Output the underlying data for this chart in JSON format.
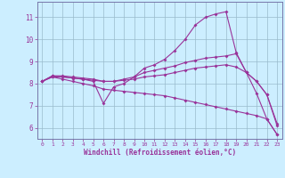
{
  "background_color": "#cceeff",
  "line_color": "#993399",
  "grid_color": "#99bbcc",
  "xlabel": "Windchill (Refroidissement éolien,°C)",
  "xlabel_color": "#993399",
  "tick_color": "#993399",
  "spine_color": "#7777aa",
  "xlim": [
    -0.5,
    23.5
  ],
  "ylim": [
    5.5,
    11.7
  ],
  "yticks": [
    6,
    7,
    8,
    9,
    10,
    11
  ],
  "xticks": [
    0,
    1,
    2,
    3,
    4,
    5,
    6,
    7,
    8,
    9,
    10,
    11,
    12,
    13,
    14,
    15,
    16,
    17,
    18,
    19,
    20,
    21,
    22,
    23
  ],
  "line1_x": [
    0,
    1,
    2,
    3,
    4,
    5,
    6,
    7,
    8,
    9,
    10,
    11,
    12,
    13,
    14,
    15,
    16,
    17,
    18,
    19,
    20,
    21,
    22,
    23
  ],
  "line1_y": [
    8.1,
    8.3,
    8.3,
    8.25,
    8.2,
    8.1,
    7.1,
    7.85,
    8.0,
    8.3,
    8.7,
    8.85,
    9.1,
    9.5,
    10.0,
    10.65,
    11.0,
    11.15,
    11.25,
    9.4,
    8.5,
    7.55,
    6.4,
    5.7
  ],
  "line2_x": [
    0,
    1,
    2,
    3,
    4,
    5,
    6,
    7,
    8,
    9,
    10,
    11,
    12,
    13,
    14,
    15,
    16,
    17,
    18,
    19,
    20,
    21,
    22,
    23
  ],
  "line2_y": [
    8.1,
    8.35,
    8.35,
    8.3,
    8.25,
    8.2,
    8.1,
    8.1,
    8.2,
    8.3,
    8.5,
    8.6,
    8.7,
    8.8,
    8.95,
    9.05,
    9.15,
    9.2,
    9.25,
    9.35,
    8.5,
    8.1,
    7.5,
    6.2
  ],
  "line3_x": [
    0,
    1,
    2,
    3,
    4,
    5,
    6,
    7,
    8,
    9,
    10,
    11,
    12,
    13,
    14,
    15,
    16,
    17,
    18,
    19,
    20,
    21,
    22,
    23
  ],
  "line3_y": [
    8.1,
    8.35,
    8.3,
    8.25,
    8.2,
    8.15,
    8.1,
    8.1,
    8.15,
    8.2,
    8.3,
    8.35,
    8.4,
    8.5,
    8.6,
    8.7,
    8.75,
    8.8,
    8.85,
    8.75,
    8.5,
    8.1,
    7.5,
    6.1
  ],
  "line4_x": [
    0,
    1,
    2,
    3,
    4,
    5,
    6,
    7,
    8,
    9,
    10,
    11,
    12,
    13,
    14,
    15,
    16,
    17,
    18,
    19,
    20,
    21,
    22,
    23
  ],
  "line4_y": [
    8.1,
    8.3,
    8.2,
    8.1,
    8.0,
    7.9,
    7.75,
    7.7,
    7.65,
    7.6,
    7.55,
    7.5,
    7.45,
    7.35,
    7.25,
    7.15,
    7.05,
    6.95,
    6.85,
    6.75,
    6.65,
    6.55,
    6.4,
    5.7
  ]
}
